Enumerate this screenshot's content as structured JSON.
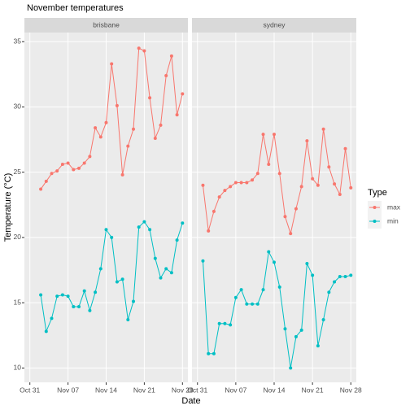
{
  "chart_data": {
    "type": "line",
    "title": "November temperatures",
    "x_label": "Date",
    "y_label": "Temperature (°C)",
    "legend_title": "Type",
    "ylim": [
      8.9,
      35.7
    ],
    "yticks": [
      10,
      15,
      20,
      25,
      30,
      35
    ],
    "xlim": [
      "10-30",
      "11-29"
    ],
    "xticks": [
      {
        "value": "10-31",
        "label": "Oct 31"
      },
      {
        "value": "11-07",
        "label": "Nov 07"
      },
      {
        "value": "11-14",
        "label": "Nov 14"
      },
      {
        "value": "11-21",
        "label": "Nov 21"
      },
      {
        "value": "11-28",
        "label": "Nov 28"
      }
    ],
    "facets": [
      {
        "name": "brisbane",
        "x": [
          "11-02",
          "11-03",
          "11-04",
          "11-05",
          "11-06",
          "11-07",
          "11-08",
          "11-09",
          "11-10",
          "11-11",
          "11-12",
          "11-13",
          "11-14",
          "11-15",
          "11-16",
          "11-17",
          "11-18",
          "11-19",
          "11-20",
          "11-21",
          "11-22",
          "11-23",
          "11-24",
          "11-25",
          "11-26",
          "11-27",
          "11-28"
        ],
        "series": [
          {
            "name": "max",
            "color": "#F8766D",
            "values": [
              23.7,
              24.3,
              24.9,
              25.1,
              25.6,
              25.7,
              25.2,
              25.3,
              25.7,
              26.2,
              28.4,
              27.7,
              28.8,
              33.3,
              30.1,
              24.8,
              27.0,
              28.3,
              34.5,
              34.3,
              30.7,
              27.6,
              28.6,
              32.4,
              33.9,
              29.4,
              31.0
            ]
          },
          {
            "name": "min",
            "color": "#00BFC4",
            "values": [
              15.6,
              12.8,
              13.8,
              15.5,
              15.6,
              15.5,
              14.7,
              14.7,
              15.9,
              14.4,
              15.8,
              17.6,
              20.6,
              20.0,
              16.6,
              16.8,
              13.7,
              15.1,
              20.8,
              21.2,
              20.6,
              18.4,
              16.9,
              17.6,
              17.3,
              19.8,
              21.1
            ]
          }
        ]
      },
      {
        "name": "sydney",
        "x": [
          "11-01",
          "11-02",
          "11-03",
          "11-04",
          "11-05",
          "11-06",
          "11-07",
          "11-08",
          "11-09",
          "11-10",
          "11-11",
          "11-12",
          "11-13",
          "11-14",
          "11-15",
          "11-16",
          "11-17",
          "11-18",
          "11-19",
          "11-20",
          "11-21",
          "11-22",
          "11-23",
          "11-24",
          "11-25",
          "11-26",
          "11-27",
          "11-28"
        ],
        "series": [
          {
            "name": "max",
            "color": "#F8766D",
            "values": [
              24.0,
              20.5,
              22.0,
              23.1,
              23.6,
              23.9,
              24.2,
              24.2,
              24.2,
              24.4,
              24.9,
              27.9,
              25.6,
              27.9,
              24.9,
              21.6,
              20.3,
              22.2,
              23.9,
              27.4,
              24.5,
              24.0,
              28.3,
              25.4,
              24.1,
              23.3,
              26.8,
              23.8
            ]
          },
          {
            "name": "min",
            "color": "#00BFC4",
            "values": [
              18.2,
              11.1,
              11.1,
              13.4,
              13.4,
              13.3,
              15.4,
              16.0,
              14.9,
              14.9,
              14.9,
              16.0,
              18.9,
              18.1,
              16.2,
              13.0,
              10.0,
              12.4,
              12.9,
              18.0,
              17.1,
              11.7,
              13.7,
              15.8,
              16.6,
              17.0,
              17.0,
              17.1
            ]
          }
        ]
      }
    ]
  }
}
